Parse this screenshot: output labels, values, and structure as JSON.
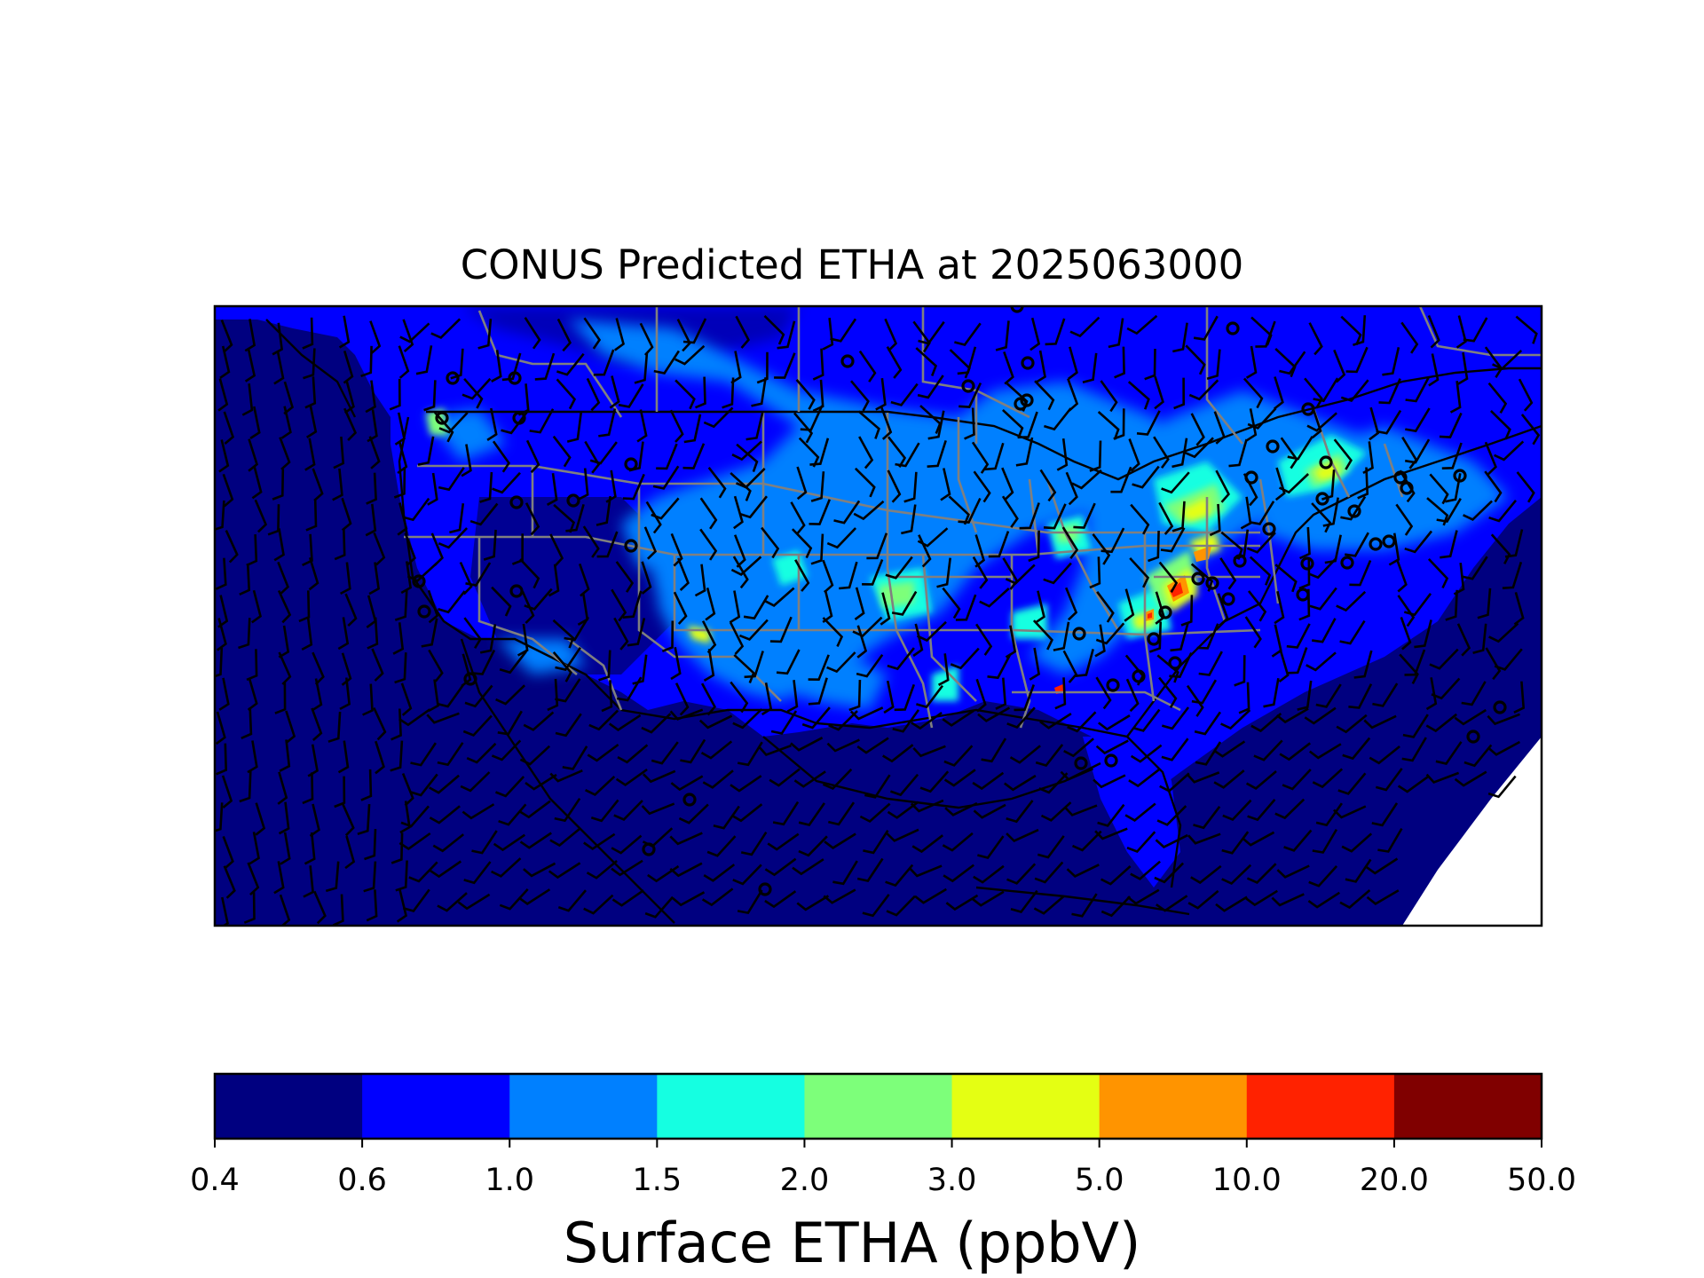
{
  "title": "CONUS Predicted ETHA at 2025063000",
  "colorbar": {
    "label": "Surface ETHA (ppbV)",
    "ticks": [
      "0.4",
      "0.6",
      "1.0",
      "1.5",
      "2.0",
      "3.0",
      "5.0",
      "10.0",
      "20.0",
      "50.0"
    ],
    "colors": [
      "#000080",
      "#0000ff",
      "#0080ff",
      "#15ffe1",
      "#7dff7a",
      "#e4ff13",
      "#ff9400",
      "#ff2200",
      "#800000"
    ]
  },
  "map": {
    "background_level_color": "#000080",
    "land_level_color": "#0000ff",
    "state_border_color": "#808080",
    "coast_color": "#000000",
    "overlay": "wind barbs"
  }
}
